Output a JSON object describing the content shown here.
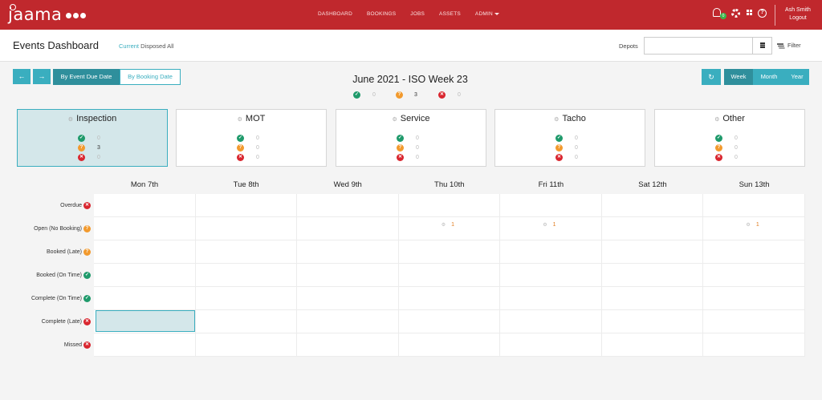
{
  "app": {
    "logo_text": "jaama",
    "nav": [
      "DASHBOARD",
      "BOOKINGS",
      "JOBS",
      "ASSETS",
      "ADMIN"
    ],
    "notification_count": "0",
    "user_name": "Ash Smith",
    "logout_label": "Logout",
    "accent_color": "#c0282d",
    "teal_color": "#3aaebf"
  },
  "header": {
    "title": "Events Dashboard",
    "filters": [
      "Current",
      "Disposed",
      "All"
    ],
    "active_filter": "Current",
    "depots_label": "Depots",
    "depots_value": "",
    "filter_label": "Filter"
  },
  "controls": {
    "prev_icon": "arrow-left-icon",
    "next_icon": "arrow-right-icon",
    "by_event_due_date": "By Event Due Date",
    "by_booking_date": "By Booking Date",
    "week_title": "June 2021 - ISO Week 23",
    "summary": {
      "complete": "0",
      "open": "3",
      "missed": "0"
    },
    "refresh_icon": "refresh-icon",
    "views": [
      "Week",
      "Month",
      "Year"
    ],
    "active_view": "Week"
  },
  "categories": [
    {
      "name": "Inspection",
      "icon": "inspection-icon",
      "complete": "0",
      "open": "3",
      "missed": "0",
      "selected": true
    },
    {
      "name": "MOT",
      "icon": "mot-icon",
      "complete": "0",
      "open": "0",
      "missed": "0",
      "selected": false
    },
    {
      "name": "Service",
      "icon": "service-icon",
      "complete": "0",
      "open": "0",
      "missed": "0",
      "selected": false
    },
    {
      "name": "Tacho",
      "icon": "tacho-icon",
      "complete": "0",
      "open": "0",
      "missed": "0",
      "selected": false
    },
    {
      "name": "Other",
      "icon": "other-icon",
      "complete": "0",
      "open": "0",
      "missed": "0",
      "selected": false
    }
  ],
  "calendar": {
    "days": [
      "Mon 7th",
      "Tue 8th",
      "Wed 9th",
      "Thu 10th",
      "Fri 11th",
      "Sat 12th",
      "Sun 13th"
    ],
    "rows": [
      {
        "label": "Overdue",
        "status": "missed"
      },
      {
        "label": "Open (No Booking)",
        "status": "open"
      },
      {
        "label": "Booked (Late)",
        "status": "open"
      },
      {
        "label": "Booked (On Time)",
        "status": "complete"
      },
      {
        "label": "Complete (On Time)",
        "status": "complete"
      },
      {
        "label": "Complete (Late)",
        "status": "missed"
      },
      {
        "label": "Missed",
        "status": "missed"
      }
    ],
    "events": [
      {
        "row": "Open (No Booking)",
        "day": "Thu 10th",
        "count": "1"
      },
      {
        "row": "Open (No Booking)",
        "day": "Fri 11th",
        "count": "1"
      },
      {
        "row": "Open (No Booking)",
        "day": "Sun 13th",
        "count": "1"
      }
    ]
  }
}
